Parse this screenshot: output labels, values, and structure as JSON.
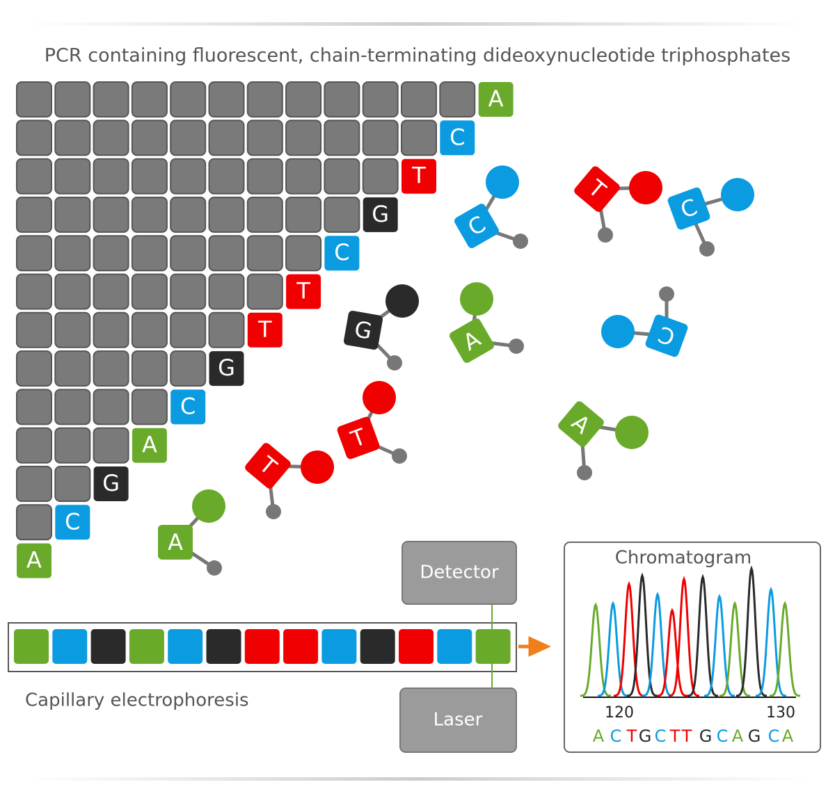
{
  "title": "PCR containing fluorescent, chain-terminating dideoxynucleotide triphosphates",
  "staircase": {
    "ends": [
      "A",
      "C",
      "T",
      "G",
      "C",
      "T",
      "T",
      "G",
      "C",
      "A",
      "G",
      "C",
      "A"
    ]
  },
  "free_nucleotides": [
    "C",
    "T",
    "C",
    "G",
    "A",
    "C",
    "T",
    "T",
    "A",
    "A"
  ],
  "capillary": {
    "label": "Capillary electrophoresis",
    "detector": "Detector",
    "laser": "Laser"
  },
  "chromatogram": {
    "title": "Chromatogram",
    "ticks": [
      120,
      130
    ],
    "bases": [
      "A",
      "C",
      "T",
      "G",
      "C",
      "T",
      "T",
      "G",
      "C",
      "A",
      "G",
      "C",
      "A"
    ]
  }
}
